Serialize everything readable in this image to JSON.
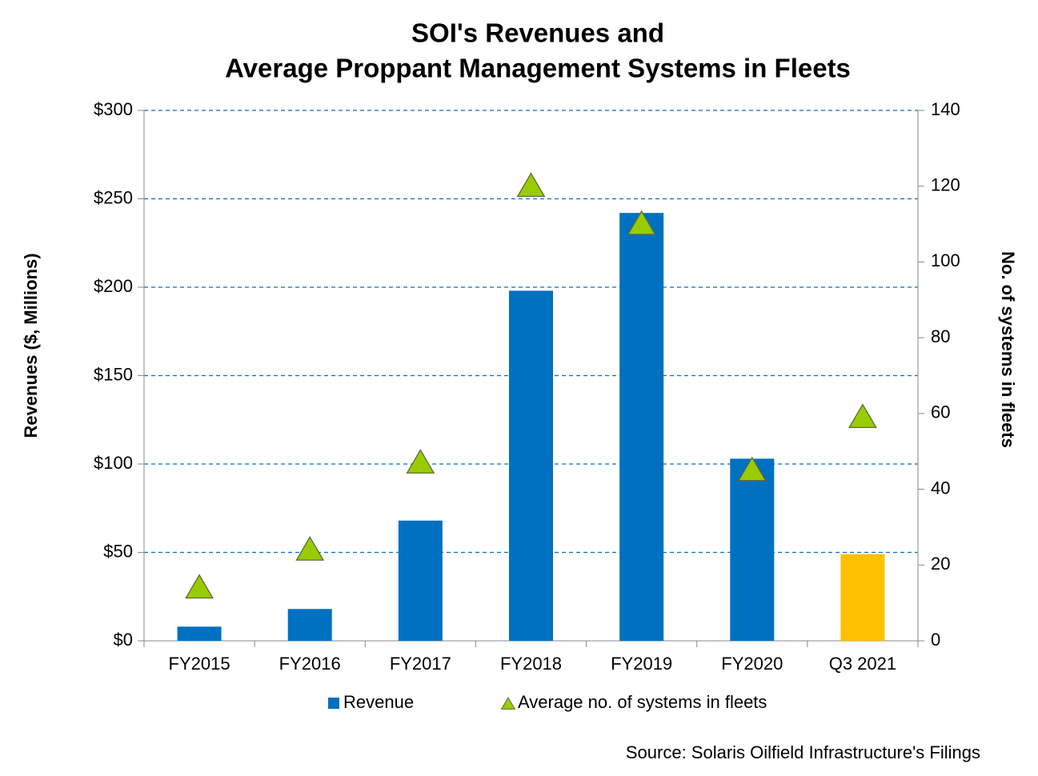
{
  "chart_data": {
    "type": "bar",
    "title": [
      "SOI's Revenues and",
      "Average Proppant Management Systems in Fleets"
    ],
    "y_label": "Revenues ($, Millions)",
    "y2_label": "No. of systems in fleets",
    "source": "Source: Solaris Oilfield Infrastructure's Filings",
    "categories": [
      "FY2015",
      "FY2016",
      "FY2017",
      "FY2018",
      "FY2019",
      "FY2020",
      "Q3 2021"
    ],
    "series": [
      {
        "name": "Revenue",
        "type": "bar",
        "color": "#0070c0",
        "colors": [
          "#0070c0",
          "#0070c0",
          "#0070c0",
          "#0070c0",
          "#0070c0",
          "#0070c0",
          "#ffc000"
        ],
        "values": [
          8,
          18,
          68,
          198,
          242,
          103,
          49
        ]
      },
      {
        "name": "Average no. of systems in fleets",
        "type": "triangle",
        "axis": "y2",
        "color": "#99cc00",
        "values": [
          14,
          24,
          47,
          120,
          110,
          45,
          59
        ]
      }
    ],
    "ylim": [
      0,
      300
    ],
    "yticks": [
      {
        "value": 0,
        "label": "$0"
      },
      {
        "value": 50,
        "label": "$50"
      },
      {
        "value": 100,
        "label": "$100"
      },
      {
        "value": 150,
        "label": "$150"
      },
      {
        "value": 200,
        "label": "$200"
      },
      {
        "value": 250,
        "label": "$250"
      },
      {
        "value": 300,
        "label": "$300"
      }
    ],
    "y2lim": [
      0,
      140
    ],
    "y2ticks": [
      0,
      20,
      40,
      60,
      80,
      100,
      120,
      140
    ],
    "grid": true,
    "legend": "bottom"
  }
}
